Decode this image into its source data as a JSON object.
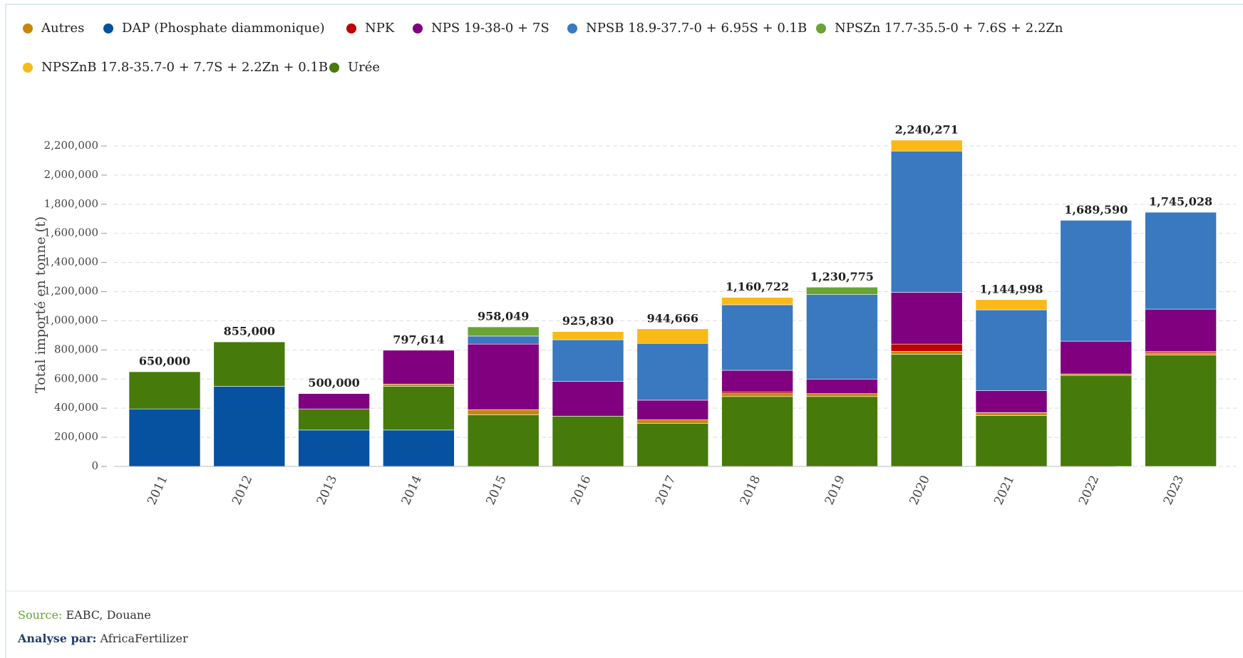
{
  "chart_data": {
    "type": "stacked_bar",
    "y_label": "Total importé en tonne (t)",
    "categories": [
      "2011",
      "2012",
      "2013",
      "2014",
      "2015",
      "2016",
      "2017",
      "2018",
      "2019",
      "2020",
      "2021",
      "2022",
      "2023"
    ],
    "series": [
      {
        "name": "Autres",
        "color": "#c8860a",
        "values": [
          null,
          null,
          null,
          15000,
          35000,
          null,
          25000,
          20000,
          20000,
          20000,
          20000,
          10000,
          15000
        ]
      },
      {
        "name": "DAP (Phosphate diammonique)",
        "color": "#0652a1",
        "values": [
          395000,
          550000,
          250000,
          250000,
          null,
          null,
          null,
          null,
          null,
          null,
          null,
          null,
          null
        ]
      },
      {
        "name": "NPK",
        "color": "#c00000",
        "values": [
          null,
          null,
          null,
          null,
          null,
          null,
          null,
          10000,
          null,
          50000,
          null,
          null,
          10000
        ]
      },
      {
        "name": "NPS 19-38-0 + 7S",
        "color": "#800080",
        "values": [
          null,
          null,
          105000,
          232614,
          450000,
          240000,
          135000,
          150000,
          100000,
          355000,
          150000,
          225000,
          290000
        ]
      },
      {
        "name": "NPSB 18.9-37.7-0 + 6.95S + 0.1B",
        "color": "#3a78c0",
        "values": [
          null,
          null,
          null,
          null,
          55000,
          285000,
          390000,
          450000,
          580000,
          970000,
          555000,
          829590,
          665028
        ]
      },
      {
        "name": "NPSZn 17.7-35.5-0 + 7.6S + 2.2Zn",
        "color": "#6aa434",
        "values": [
          null,
          null,
          null,
          null,
          63049,
          null,
          null,
          null,
          50775,
          null,
          null,
          null,
          null
        ]
      },
      {
        "name": "NPSZnB 17.8-35.7-0 + 7.7S + 2.2Zn + 0.1B",
        "color": "#fbb917",
        "values": [
          null,
          null,
          null,
          null,
          null,
          55830,
          99666,
          50722,
          null,
          75271,
          69998,
          null,
          null
        ]
      },
      {
        "name": "Urée",
        "color": "#467a0a",
        "values": [
          255000,
          305000,
          145000,
          300000,
          355000,
          345000,
          295000,
          480000,
          480000,
          770000,
          350000,
          625000,
          765000
        ]
      }
    ],
    "totals": [
      650000,
      855000,
      500000,
      797614,
      958049,
      925830,
      944666,
      1160722,
      1230775,
      2240271,
      1144998,
      1689590,
      1745028
    ],
    "total_labels": [
      "650,000",
      "855,000",
      "500,000",
      "797,614",
      "958,049",
      "925,830",
      "944,666",
      "1,160,722",
      "1,230,775",
      "2,240,271",
      "1,144,998",
      "1,689,590",
      "1,745,028"
    ],
    "ylim": [
      0,
      2400000
    ],
    "yticks": [
      0,
      {
        "value": 200000,
        "label": "200,000"
      },
      {
        "value": 400000,
        "label": "400,000"
      },
      {
        "value": 600000,
        "label": "600,000"
      },
      {
        "value": 800000,
        "label": "800,000"
      },
      {
        "value": 1000000,
        "label": "1,000,000"
      },
      {
        "value": 1200000,
        "label": "1,200,000"
      },
      {
        "value": 1400000,
        "label": "1,400,000"
      },
      {
        "value": 1600000,
        "label": "1,600,000"
      },
      {
        "value": 1800000,
        "label": "1,800,000"
      },
      {
        "value": 2000000,
        "label": "2,000,000"
      },
      {
        "value": 2200000,
        "label": "2,200,000"
      }
    ],
    "grid": true
  },
  "footer": {
    "source_label": "Source:",
    "source": "EABC, Douane",
    "analysis_label": "Analyse par:",
    "analysis": "AfricaFertilizer"
  }
}
